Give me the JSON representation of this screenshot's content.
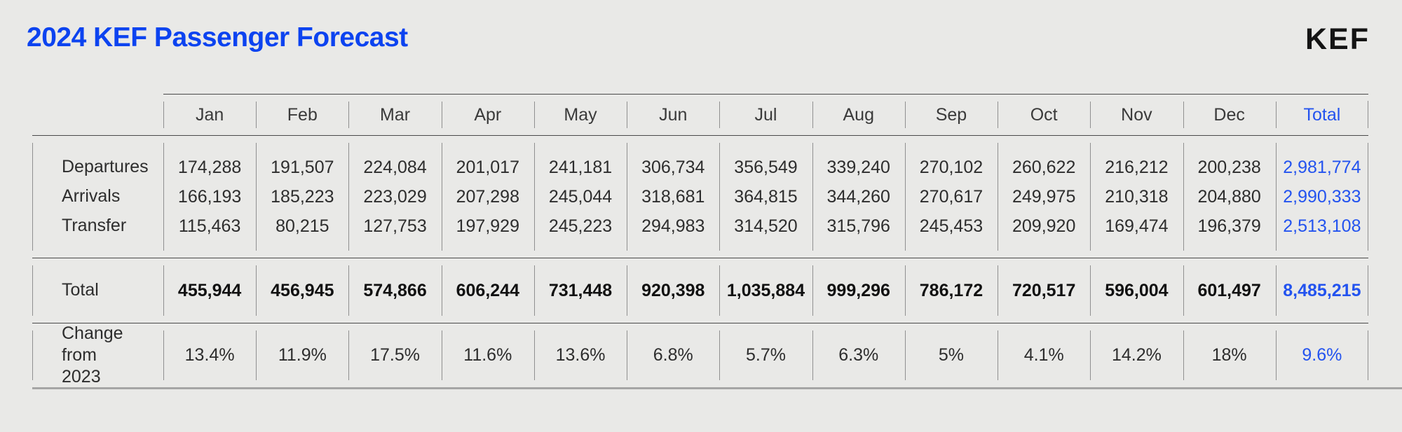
{
  "title": "2024 KEF Passenger Forecast",
  "logo": "KEF",
  "colors": {
    "accent_title": "#0c43f0",
    "accent_total": "#2353ef",
    "background": "#e9e9e7"
  },
  "table": {
    "columns": [
      "Jan",
      "Feb",
      "Mar",
      "Apr",
      "May",
      "Jun",
      "Jul",
      "Aug",
      "Sep",
      "Oct",
      "Nov",
      "Dec",
      "Total"
    ],
    "groups": [
      {
        "name": "traffic",
        "rows": [
          {
            "label": "Departures",
            "values": [
              "174,288",
              "191,507",
              "224,084",
              "201,017",
              "241,181",
              "306,734",
              "356,549",
              "339,240",
              "270,102",
              "260,622",
              "216,212",
              "200,238",
              "2,981,774"
            ]
          },
          {
            "label": "Arrivals",
            "values": [
              "166,193",
              "185,223",
              "223,029",
              "207,298",
              "245,044",
              "318,681",
              "364,815",
              "344,260",
              "270,617",
              "249,975",
              "210,318",
              "204,880",
              "2,990,333"
            ]
          },
          {
            "label": "Transfer",
            "values": [
              "115,463",
              "80,215",
              "127,753",
              "197,929",
              "245,223",
              "294,983",
              "314,520",
              "315,796",
              "245,453",
              "209,920",
              "169,474",
              "196,379",
              "2,513,108"
            ]
          }
        ]
      },
      {
        "name": "total",
        "rows": [
          {
            "label": "Total",
            "values": [
              "455,944",
              "456,945",
              "574,866",
              "606,244",
              "731,448",
              "920,398",
              "1,035,884",
              "999,296",
              "786,172",
              "720,517",
              "596,004",
              "601,497",
              "8,485,215"
            ]
          }
        ]
      },
      {
        "name": "change",
        "rows": [
          {
            "label": "Change from 2023",
            "values": [
              "13.4%",
              "11.9%",
              "17.5%",
              "11.6%",
              "13.6%",
              "6.8%",
              "5.7%",
              "6.3%",
              "5%",
              "4.1%",
              "14.2%",
              "18%",
              "9.6%"
            ]
          }
        ]
      }
    ]
  },
  "chart_data": {
    "type": "table",
    "title": "2024 KEF Passenger Forecast",
    "columns": [
      "Jan",
      "Feb",
      "Mar",
      "Apr",
      "May",
      "Jun",
      "Jul",
      "Aug",
      "Sep",
      "Oct",
      "Nov",
      "Dec",
      "Total"
    ],
    "rows": [
      {
        "label": "Departures",
        "values": [
          174288,
          191507,
          224084,
          201017,
          241181,
          306734,
          356549,
          339240,
          270102,
          260622,
          216212,
          200238,
          2981774
        ]
      },
      {
        "label": "Arrivals",
        "values": [
          166193,
          185223,
          223029,
          207298,
          245044,
          318681,
          364815,
          344260,
          270617,
          249975,
          210318,
          204880,
          2990333
        ]
      },
      {
        "label": "Transfer",
        "values": [
          115463,
          80215,
          127753,
          197929,
          245223,
          294983,
          314520,
          315796,
          245453,
          209920,
          169474,
          196379,
          2513108
        ]
      },
      {
        "label": "Total",
        "values": [
          455944,
          456945,
          574866,
          606244,
          731448,
          920398,
          1035884,
          999296,
          786172,
          720517,
          596004,
          601497,
          8485215
        ]
      },
      {
        "label": "Change from 2023",
        "values": [
          "13.4%",
          "11.9%",
          "17.5%",
          "11.6%",
          "13.6%",
          "6.8%",
          "5.7%",
          "6.3%",
          "5%",
          "4.1%",
          "14.2%",
          "18%",
          "9.6%"
        ]
      }
    ]
  }
}
